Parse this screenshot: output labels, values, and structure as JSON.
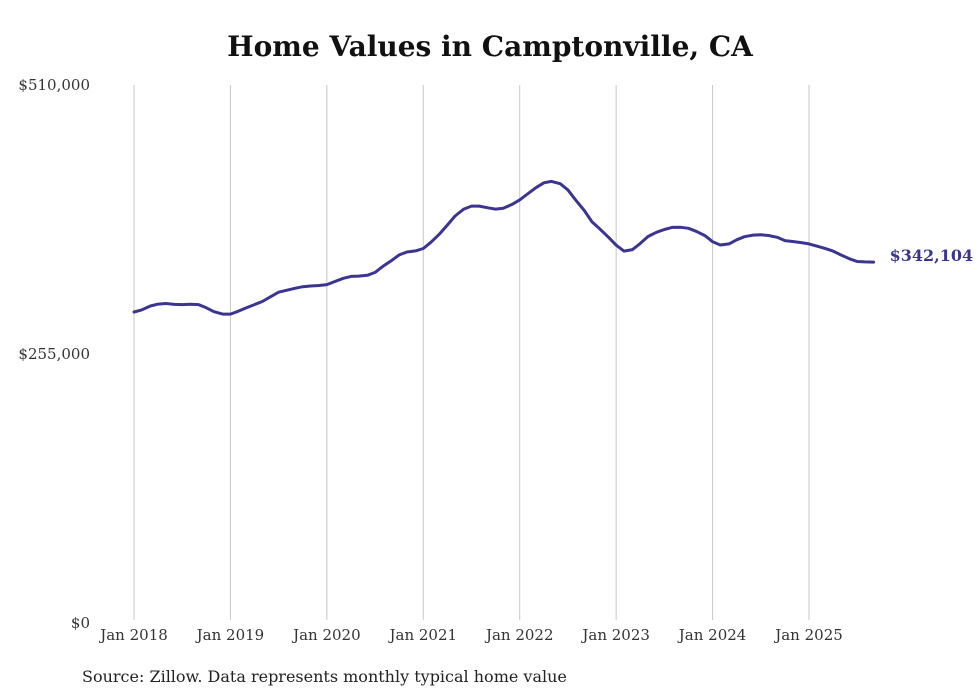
{
  "chart_data": {
    "type": "line",
    "title": "Home Values in Camptonville, CA",
    "xlabel": "",
    "ylabel": "",
    "ylim": [
      0,
      510000
    ],
    "grid": "vertical",
    "line_color": "#3b3591",
    "grid_color": "#c8c8c8",
    "y_ticks": [
      {
        "value": 510000,
        "label": "$510,000"
      },
      {
        "value": 255000,
        "label": "$255,000"
      },
      {
        "value": 0,
        "label": "$0"
      }
    ],
    "x_ticks": [
      {
        "value": 2018.0,
        "label": "Jan 2018"
      },
      {
        "value": 2019.0,
        "label": "Jan 2019"
      },
      {
        "value": 2020.0,
        "label": "Jan 2020"
      },
      {
        "value": 2021.0,
        "label": "Jan 2021"
      },
      {
        "value": 2022.0,
        "label": "Jan 2022"
      },
      {
        "value": 2023.0,
        "label": "Jan 2023"
      },
      {
        "value": 2024.0,
        "label": "Jan 2024"
      },
      {
        "value": 2025.0,
        "label": "Jan 2025"
      }
    ],
    "x_range": [
      2018.0,
      2025.67
    ],
    "series": [
      {
        "name": "Typical home value",
        "end_label": "$342,104",
        "points": [
          [
            2018.0,
            294800
          ],
          [
            2018.08,
            296800
          ],
          [
            2018.17,
            300500
          ],
          [
            2018.25,
            302300
          ],
          [
            2018.33,
            302900
          ],
          [
            2018.42,
            302000
          ],
          [
            2018.5,
            301800
          ],
          [
            2018.58,
            302200
          ],
          [
            2018.67,
            301800
          ],
          [
            2018.75,
            298800
          ],
          [
            2018.83,
            295100
          ],
          [
            2018.92,
            292800
          ],
          [
            2019.0,
            292800
          ],
          [
            2019.08,
            295500
          ],
          [
            2019.17,
            299000
          ],
          [
            2019.25,
            301800
          ],
          [
            2019.33,
            304800
          ],
          [
            2019.42,
            309400
          ],
          [
            2019.5,
            313600
          ],
          [
            2019.58,
            315400
          ],
          [
            2019.67,
            317300
          ],
          [
            2019.75,
            318800
          ],
          [
            2019.83,
            319500
          ],
          [
            2019.92,
            319900
          ],
          [
            2020.0,
            320800
          ],
          [
            2020.08,
            323600
          ],
          [
            2020.17,
            326800
          ],
          [
            2020.25,
            328600
          ],
          [
            2020.33,
            328800
          ],
          [
            2020.42,
            329600
          ],
          [
            2020.5,
            332400
          ],
          [
            2020.58,
            338000
          ],
          [
            2020.67,
            343500
          ],
          [
            2020.75,
            348900
          ],
          [
            2020.83,
            351700
          ],
          [
            2020.92,
            352700
          ],
          [
            2021.0,
            355000
          ],
          [
            2021.08,
            361000
          ],
          [
            2021.17,
            368900
          ],
          [
            2021.25,
            377300
          ],
          [
            2021.33,
            385800
          ],
          [
            2021.42,
            392400
          ],
          [
            2021.5,
            395200
          ],
          [
            2021.58,
            395200
          ],
          [
            2021.67,
            393600
          ],
          [
            2021.75,
            392400
          ],
          [
            2021.83,
            393100
          ],
          [
            2021.92,
            396800
          ],
          [
            2022.0,
            401100
          ],
          [
            2022.08,
            406600
          ],
          [
            2022.17,
            412700
          ],
          [
            2022.25,
            417300
          ],
          [
            2022.33,
            418600
          ],
          [
            2022.42,
            416400
          ],
          [
            2022.5,
            410600
          ],
          [
            2022.58,
            401100
          ],
          [
            2022.67,
            391000
          ],
          [
            2022.75,
            380200
          ],
          [
            2022.83,
            373600
          ],
          [
            2022.92,
            365700
          ],
          [
            2023.0,
            358100
          ],
          [
            2023.08,
            352500
          ],
          [
            2023.17,
            354000
          ],
          [
            2023.25,
            359800
          ],
          [
            2023.33,
            366400
          ],
          [
            2023.42,
            370500
          ],
          [
            2023.5,
            373000
          ],
          [
            2023.58,
            375000
          ],
          [
            2023.67,
            375100
          ],
          [
            2023.75,
            374200
          ],
          [
            2023.83,
            371300
          ],
          [
            2023.92,
            367200
          ],
          [
            2024.0,
            361500
          ],
          [
            2024.08,
            358300
          ],
          [
            2024.17,
            359400
          ],
          [
            2024.25,
            363300
          ],
          [
            2024.33,
            366200
          ],
          [
            2024.42,
            367700
          ],
          [
            2024.5,
            368100
          ],
          [
            2024.58,
            367300
          ],
          [
            2024.67,
            365600
          ],
          [
            2024.75,
            362500
          ],
          [
            2024.83,
            361600
          ],
          [
            2024.92,
            360600
          ],
          [
            2025.0,
            359400
          ],
          [
            2025.08,
            357300
          ],
          [
            2025.17,
            354900
          ],
          [
            2025.25,
            352500
          ],
          [
            2025.33,
            348900
          ],
          [
            2025.42,
            345200
          ],
          [
            2025.5,
            342700
          ],
          [
            2025.58,
            342300
          ],
          [
            2025.67,
            342104
          ]
        ]
      }
    ]
  },
  "source_note": "Source: Zillow. Data represents monthly typical home value"
}
